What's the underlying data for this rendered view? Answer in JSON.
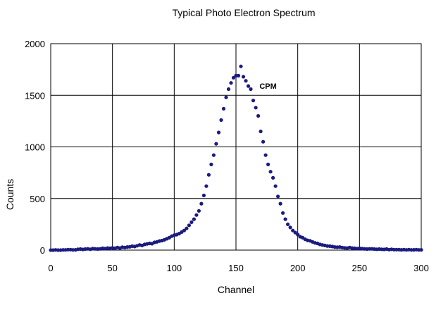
{
  "chart_data": {
    "type": "scatter",
    "title": "Typical Photo Electron Spectrum",
    "xlabel": "Channel",
    "ylabel": "Counts",
    "xlim": [
      0,
      300
    ],
    "ylim": [
      0,
      2000
    ],
    "xticks": [
      0,
      50,
      100,
      150,
      200,
      250,
      300
    ],
    "yticks": [
      0,
      500,
      1000,
      1500,
      2000
    ],
    "grid": true,
    "marker_color": "#1a1a80",
    "annotations": [
      {
        "text": "CPM",
        "x": 169,
        "y": 1590
      }
    ],
    "series": [
      {
        "x": [
          0,
          2,
          4,
          6,
          8,
          10,
          12,
          14,
          16,
          18,
          20,
          22,
          24,
          26,
          28,
          30,
          32,
          34,
          36,
          38,
          40,
          42,
          44,
          46,
          48,
          50,
          52,
          54,
          56,
          58,
          60,
          62,
          64,
          66,
          68,
          70,
          72,
          74,
          76,
          78,
          80,
          82,
          84,
          86,
          88,
          90,
          92,
          94,
          96,
          98,
          100,
          102,
          104,
          106,
          108,
          110,
          112,
          114,
          116,
          118,
          120,
          122,
          124,
          126,
          128,
          130,
          132,
          134,
          136,
          138,
          140,
          142,
          144,
          146,
          148,
          150,
          152,
          154,
          156,
          158,
          160,
          162,
          164,
          166,
          168,
          170,
          172,
          174,
          176,
          178,
          180,
          182,
          184,
          186,
          188,
          190,
          192,
          194,
          196,
          198,
          200,
          202,
          204,
          206,
          208,
          210,
          212,
          214,
          216,
          218,
          220,
          222,
          224,
          226,
          228,
          230,
          232,
          234,
          236,
          238,
          240,
          242,
          244,
          246,
          248,
          250,
          252,
          254,
          256,
          258,
          260,
          262,
          264,
          266,
          268,
          270,
          272,
          274,
          276,
          278,
          280,
          282,
          284,
          286,
          288,
          290,
          292,
          294,
          296,
          298,
          300
        ],
        "y": [
          0,
          0,
          2,
          0,
          0,
          2,
          2,
          5,
          5,
          2,
          3,
          8,
          10,
          7,
          10,
          12,
          8,
          15,
          12,
          10,
          12,
          18,
          15,
          20,
          18,
          22,
          18,
          25,
          20,
          28,
          25,
          30,
          32,
          38,
          35,
          42,
          50,
          45,
          55,
          60,
          65,
          62,
          75,
          80,
          88,
          92,
          100,
          110,
          120,
          135,
          145,
          150,
          160,
          175,
          190,
          210,
          240,
          270,
          300,
          340,
          380,
          450,
          530,
          620,
          730,
          830,
          920,
          1030,
          1140,
          1260,
          1370,
          1480,
          1560,
          1620,
          1670,
          1690,
          1690,
          1780,
          1680,
          1640,
          1590,
          1560,
          1450,
          1380,
          1300,
          1150,
          1050,
          920,
          830,
          760,
          700,
          620,
          520,
          450,
          360,
          300,
          250,
          220,
          190,
          170,
          150,
          130,
          120,
          105,
          95,
          90,
          80,
          70,
          65,
          55,
          50,
          45,
          40,
          38,
          35,
          30,
          28,
          30,
          25,
          22,
          20,
          25,
          20,
          18,
          15,
          18,
          15,
          12,
          10,
          12,
          12,
          10,
          8,
          10,
          8,
          7,
          10,
          5,
          8,
          5,
          5,
          5,
          3,
          5,
          2,
          5,
          2,
          3,
          5,
          2,
          3
        ]
      }
    ]
  }
}
